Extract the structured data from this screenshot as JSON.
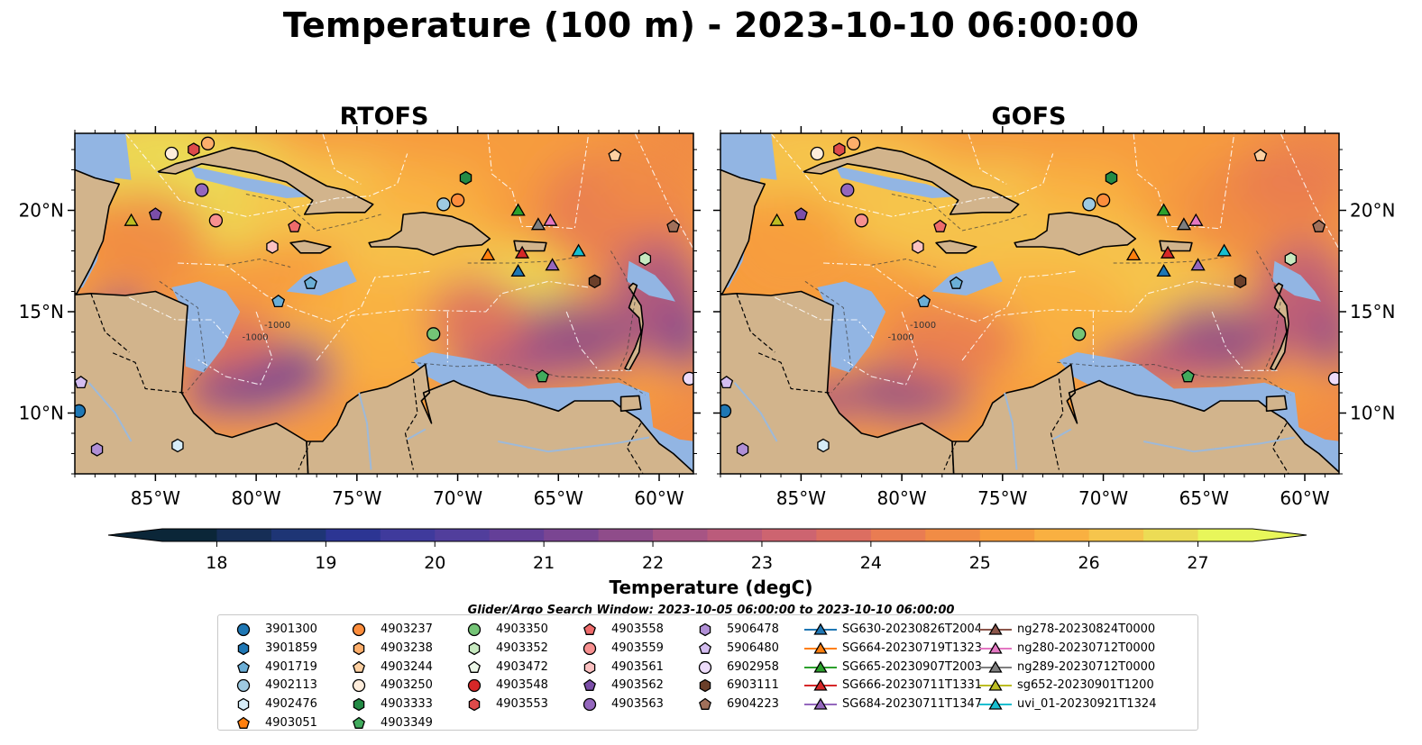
{
  "title": "Temperature (100 m) - 2023-10-10 06:00:00",
  "panels": [
    {
      "title": "RTOFS"
    },
    {
      "title": "GOFS"
    }
  ],
  "x_ticks": [
    "85°W",
    "80°W",
    "75°W",
    "70°W",
    "65°W",
    "60°W"
  ],
  "y_ticks": [
    "20°N",
    "15°N",
    "10°N"
  ],
  "x_tick_values": [
    -85,
    -80,
    -75,
    -70,
    -65,
    -60
  ],
  "y_tick_values": [
    20,
    15,
    10
  ],
  "lon_range": [
    -89,
    -58.3
  ],
  "lat_range": [
    7,
    23.8
  ],
  "bathymetry_labels": [
    "-1000",
    "-1000"
  ],
  "colorbar": {
    "label": "Temperature (degC)",
    "ticks": [
      "18",
      "19",
      "20",
      "21",
      "22",
      "23",
      "24",
      "25",
      "26",
      "27"
    ],
    "tick_values": [
      18,
      19,
      20,
      21,
      22,
      23,
      24,
      25,
      26,
      27
    ],
    "range": [
      17.5,
      27.5
    ],
    "extend": "both",
    "colors": [
      "#0b2638",
      "#162e56",
      "#1e3575",
      "#2c3593",
      "#3f3a9c",
      "#513e9c",
      "#643f98",
      "#7a4592",
      "#8f4c8a",
      "#a75484",
      "#bb5b7b",
      "#cd6470",
      "#dc6e61",
      "#e97c52",
      "#f18c45",
      "#f79d3d",
      "#f9b041",
      "#f6c54c",
      "#ecdc55",
      "#e8f65a"
    ]
  },
  "colors": {
    "land": "#d2b48c",
    "shelf": "#92b5e3",
    "deep_cool": "#0b2638",
    "warm": "#e8f65a"
  },
  "search_window": "Glider/Argo Search Window: 2023-10-05 06:00:00 to 2023-10-10 06:00:00",
  "legend": [
    {
      "label": "3901300",
      "marker": "circle",
      "color": "#1f77b4"
    },
    {
      "label": "3901859",
      "marker": "hexagon",
      "color": "#1f77b4"
    },
    {
      "label": "4901719",
      "marker": "pentagon",
      "color": "#6baed6"
    },
    {
      "label": "4902113",
      "marker": "circle",
      "color": "#9ecae1"
    },
    {
      "label": "4902476",
      "marker": "hexagon",
      "color": "#d6ecf7"
    },
    {
      "label": "4903051",
      "marker": "pentagon",
      "color": "#ff7f0e"
    },
    {
      "label": "4903237",
      "marker": "circle",
      "color": "#fd8d3c"
    },
    {
      "label": "4903238",
      "marker": "hexagon",
      "color": "#fdae6b"
    },
    {
      "label": "4903244",
      "marker": "pentagon",
      "color": "#fdd0a2"
    },
    {
      "label": "4903250",
      "marker": "circle",
      "color": "#feeddc"
    },
    {
      "label": "4903333",
      "marker": "hexagon",
      "color": "#238b45"
    },
    {
      "label": "4903349",
      "marker": "pentagon",
      "color": "#41ab5d"
    },
    {
      "label": "4903350",
      "marker": "circle",
      "color": "#74c476"
    },
    {
      "label": "4903352",
      "marker": "hexagon",
      "color": "#c7e9c0"
    },
    {
      "label": "4903472",
      "marker": "pentagon",
      "color": "#edf8e9"
    },
    {
      "label": "4903548",
      "marker": "circle",
      "color": "#d62728"
    },
    {
      "label": "4903553",
      "marker": "hexagon",
      "color": "#de4a4a"
    },
    {
      "label": "4903558",
      "marker": "pentagon",
      "color": "#ef6b6b"
    },
    {
      "label": "4903559",
      "marker": "circle",
      "color": "#f79090"
    },
    {
      "label": "4903561",
      "marker": "hexagon",
      "color": "#fbc1c1"
    },
    {
      "label": "4903562",
      "marker": "pentagon",
      "color": "#7b4ea8"
    },
    {
      "label": "4903563",
      "marker": "circle",
      "color": "#9467bd"
    },
    {
      "label": "5906478",
      "marker": "hexagon",
      "color": "#b08fd6"
    },
    {
      "label": "5906480",
      "marker": "pentagon",
      "color": "#d4bdf0"
    },
    {
      "label": "6902958",
      "marker": "circle",
      "color": "#eddcfa"
    },
    {
      "label": "6903111",
      "marker": "hexagon",
      "color": "#6b3f2a"
    },
    {
      "label": "6904223",
      "marker": "pentagon",
      "color": "#a0705a"
    },
    {
      "label": "SG630-20230826T2004",
      "marker": "triangle",
      "color": "#1f77b4"
    },
    {
      "label": "SG664-20230719T1323",
      "marker": "triangle",
      "color": "#ff7f0e"
    },
    {
      "label": "SG665-20230907T2003",
      "marker": "triangle",
      "color": "#2ca02c"
    },
    {
      "label": "SG666-20230711T1331",
      "marker": "triangle",
      "color": "#d62728"
    },
    {
      "label": "SG684-20230711T1347",
      "marker": "triangle",
      "color": "#9467bd"
    },
    {
      "label": "ng278-20230824T0000",
      "marker": "triangle",
      "color": "#8c564b"
    },
    {
      "label": "ng280-20230712T0000",
      "marker": "triangle",
      "color": "#e377c2"
    },
    {
      "label": "ng289-20230712T0000",
      "marker": "triangle",
      "color": "#7f7f7f"
    },
    {
      "label": "sg652-20230901T1200",
      "marker": "triangle",
      "color": "#bcbd22"
    },
    {
      "label": "uvi_01-20230921T1324",
      "marker": "triangle",
      "color": "#17becf"
    }
  ],
  "observations": [
    {
      "lon": -84.2,
      "lat": 22.8,
      "marker": "circle",
      "color": "#feeddc"
    },
    {
      "lon": -83.1,
      "lat": 23.0,
      "marker": "hexagon",
      "color": "#de4a4a"
    },
    {
      "lon": -82.4,
      "lat": 23.3,
      "marker": "circle",
      "color": "#fdae6b"
    },
    {
      "lon": -82.7,
      "lat": 21.0,
      "marker": "circle",
      "color": "#9467bd"
    },
    {
      "lon": -86.2,
      "lat": 19.5,
      "marker": "triangle",
      "color": "#bcbd22"
    },
    {
      "lon": -85.0,
      "lat": 19.8,
      "marker": "pentagon",
      "color": "#7b4ea8"
    },
    {
      "lon": -82.0,
      "lat": 19.5,
      "marker": "circle",
      "color": "#f79090"
    },
    {
      "lon": -79.2,
      "lat": 18.2,
      "marker": "hexagon",
      "color": "#fbc1c1"
    },
    {
      "lon": -78.1,
      "lat": 19.2,
      "marker": "pentagon",
      "color": "#ef6b6b"
    },
    {
      "lon": -77.3,
      "lat": 16.4,
      "marker": "pentagon",
      "color": "#6baed6"
    },
    {
      "lon": -78.9,
      "lat": 15.5,
      "marker": "pentagon",
      "color": "#6baed6"
    },
    {
      "lon": -70.7,
      "lat": 20.3,
      "marker": "circle",
      "color": "#9ecae1"
    },
    {
      "lon": -70.0,
      "lat": 20.5,
      "marker": "circle",
      "color": "#fd8d3c"
    },
    {
      "lon": -69.6,
      "lat": 21.6,
      "marker": "hexagon",
      "color": "#238b45"
    },
    {
      "lon": -67.0,
      "lat": 20.0,
      "marker": "triangle",
      "color": "#2ca02c"
    },
    {
      "lon": -66.0,
      "lat": 19.3,
      "marker": "triangle",
      "color": "#7f7f7f"
    },
    {
      "lon": -65.4,
      "lat": 19.5,
      "marker": "triangle",
      "color": "#e377c2"
    },
    {
      "lon": -68.5,
      "lat": 17.8,
      "marker": "triangle",
      "color": "#ff7f0e"
    },
    {
      "lon": -66.8,
      "lat": 17.9,
      "marker": "triangle",
      "color": "#d62728"
    },
    {
      "lon": -67.0,
      "lat": 17.0,
      "marker": "triangle",
      "color": "#1f77b4"
    },
    {
      "lon": -65.3,
      "lat": 17.3,
      "marker": "triangle",
      "color": "#9467bd"
    },
    {
      "lon": -64.0,
      "lat": 18.0,
      "marker": "triangle",
      "color": "#17becf"
    },
    {
      "lon": -62.2,
      "lat": 22.7,
      "marker": "pentagon",
      "color": "#fdd0a2"
    },
    {
      "lon": -60.7,
      "lat": 17.6,
      "marker": "hexagon",
      "color": "#c7e9c0"
    },
    {
      "lon": -59.3,
      "lat": 19.2,
      "marker": "pentagon",
      "color": "#a0705a"
    },
    {
      "lon": -63.2,
      "lat": 16.5,
      "marker": "hexagon",
      "color": "#6b3f2a"
    },
    {
      "lon": -71.2,
      "lat": 13.9,
      "marker": "circle",
      "color": "#74c476"
    },
    {
      "lon": -65.8,
      "lat": 11.8,
      "marker": "pentagon",
      "color": "#41ab5d"
    },
    {
      "lon": -58.5,
      "lat": 11.7,
      "marker": "circle",
      "color": "#eddcfa"
    },
    {
      "lon": -88.7,
      "lat": 11.5,
      "marker": "pentagon",
      "color": "#d4bdf0"
    },
    {
      "lon": -88.8,
      "lat": 10.1,
      "marker": "circle",
      "color": "#1f77b4"
    },
    {
      "lon": -87.9,
      "lat": 8.2,
      "marker": "hexagon",
      "color": "#b08fd6"
    },
    {
      "lon": -83.9,
      "lat": 8.4,
      "marker": "hexagon",
      "color": "#d6ecf7"
    }
  ]
}
